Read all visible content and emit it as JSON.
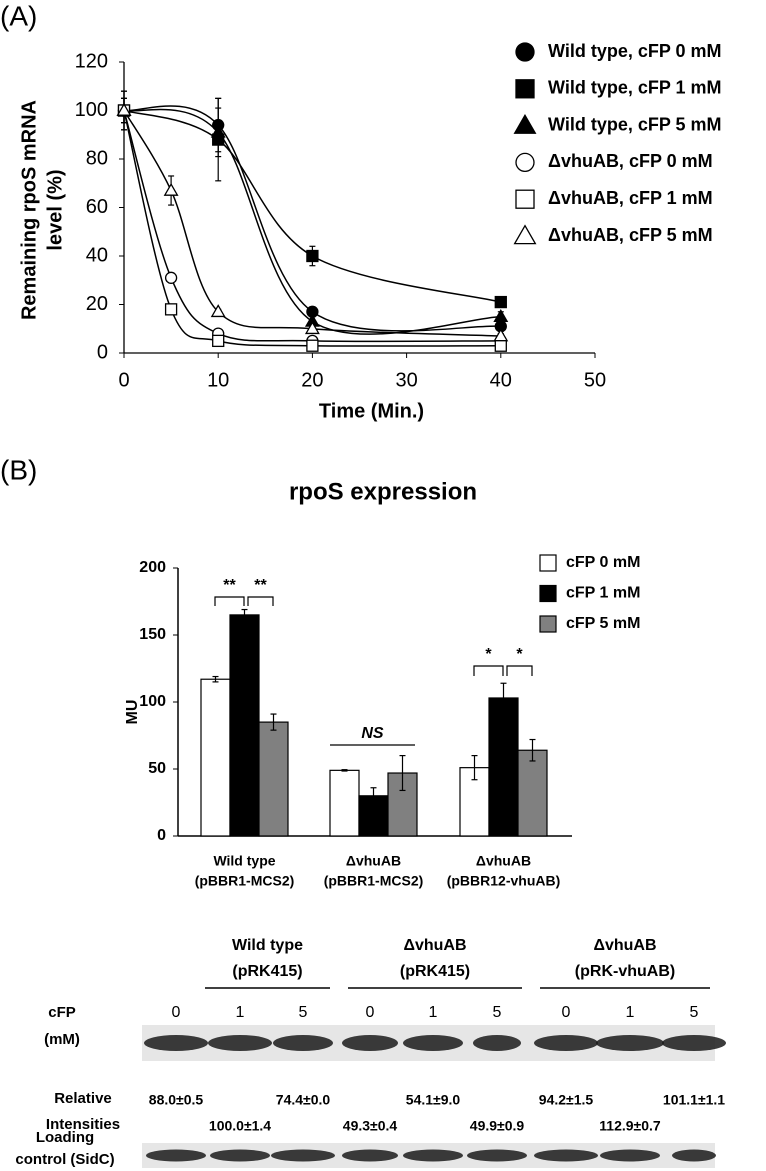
{
  "panel_labels": [
    "(A)",
    "(B)"
  ],
  "chart_data": [
    {
      "type": "line",
      "x_label": "Time (Min.)",
      "y_label": [
        "Remaining rpoS mRNA",
        "level (%)"
      ],
      "xlim": [
        0,
        50
      ],
      "xticks": [
        0,
        10,
        20,
        30,
        40,
        50
      ],
      "ylim": [
        0,
        120
      ],
      "yticks": [
        0,
        20,
        40,
        60,
        80,
        100,
        120
      ],
      "legend": "right",
      "series": [
        {
          "name": "Wild type, cFP 0 mM",
          "marker": "circle",
          "color": "#000000",
          "fill": "#000000",
          "x": [
            0,
            10,
            20,
            40
          ],
          "values": [
            100,
            94,
            17,
            11
          ],
          "errors": [
            8,
            11,
            2,
            2
          ]
        },
        {
          "name": "Wild type, cFP 1 mM",
          "marker": "square",
          "color": "#000000",
          "fill": "#000000",
          "x": [
            0,
            10,
            20,
            40
          ],
          "values": [
            100,
            88,
            40,
            21
          ],
          "errors": [
            8,
            17,
            4,
            1
          ]
        },
        {
          "name": "Wild type, cFP 5 mM",
          "marker": "triangle",
          "color": "#000000",
          "fill": "#000000",
          "x": [
            0,
            10,
            20,
            40
          ],
          "values": [
            100,
            91,
            13,
            15
          ],
          "errors": [
            8,
            10,
            2,
            2
          ]
        },
        {
          "name": "ΔvhuAB, cFP 0 mM",
          "marker": "circle",
          "color": "#000000",
          "fill": "#ffffff",
          "x": [
            0,
            5,
            10,
            20,
            40
          ],
          "values": [
            100,
            31,
            8,
            5,
            5
          ],
          "errors": [
            5,
            2,
            1,
            1,
            1
          ]
        },
        {
          "name": "ΔvhuAB, cFP 1 mM",
          "marker": "square",
          "color": "#000000",
          "fill": "#ffffff",
          "x": [
            0,
            5,
            10,
            20,
            40
          ],
          "values": [
            100,
            18,
            5,
            3,
            3
          ],
          "errors": [
            5,
            2,
            1,
            1,
            1
          ]
        },
        {
          "name": "ΔvhuAB, cFP 5 mM",
          "marker": "triangle",
          "color": "#000000",
          "fill": "#ffffff",
          "x": [
            0,
            5,
            10,
            20,
            40
          ],
          "values": [
            100,
            67,
            17,
            10,
            7
          ],
          "errors": [
            5,
            6,
            1,
            1,
            1
          ]
        }
      ]
    },
    {
      "type": "bar",
      "title": "rpoS expression",
      "y_label": "MU",
      "ylim": [
        0,
        200
      ],
      "yticks": [
        0,
        50,
        100,
        150,
        200
      ],
      "legend": "upper right",
      "categories": [
        [
          "Wild type",
          "(pBBR1-MCS2)"
        ],
        [
          "ΔvhuAB",
          "(pBBR1-MCS2)"
        ],
        [
          "ΔvhuAB",
          "(pBBR12-vhuAB)"
        ]
      ],
      "series": [
        {
          "name": "cFP 0 mM",
          "color": "#ffffff",
          "values": [
            117,
            49,
            51
          ],
          "errors": [
            2,
            0.5,
            9
          ]
        },
        {
          "name": "cFP 1 mM",
          "color": "#000000",
          "values": [
            165,
            30,
            103
          ],
          "errors": [
            4,
            6,
            11
          ]
        },
        {
          "name": "cFP 5 mM",
          "color": "#808080",
          "values": [
            85,
            47,
            64
          ],
          "errors": [
            6,
            13,
            8
          ]
        }
      ],
      "annotations": [
        "**",
        "**",
        "NS",
        "*",
        "*"
      ]
    }
  ],
  "blot": {
    "groups": [
      [
        "Wild type",
        "(pRK415)"
      ],
      [
        "ΔvhuAB",
        "(pRK415)"
      ],
      [
        "ΔvhuAB",
        "(pRK-vhuAB)"
      ]
    ],
    "row_label": [
      "cFP",
      "(mM)"
    ],
    "lanes": [
      "0",
      "1",
      "5",
      "0",
      "1",
      "5",
      "0",
      "1",
      "5"
    ],
    "intensity_label": [
      "Relative",
      "Intensities"
    ],
    "intensities": [
      "88.0±0.5",
      "100.0±1.4",
      "74.4±0.0",
      "49.3±0.4",
      "54.1±9.0",
      "49.9±0.9",
      "94.2±1.5",
      "112.9±0.7",
      "101.1±1.1"
    ],
    "loading_label": [
      "Loading",
      "control (SidC)"
    ]
  }
}
